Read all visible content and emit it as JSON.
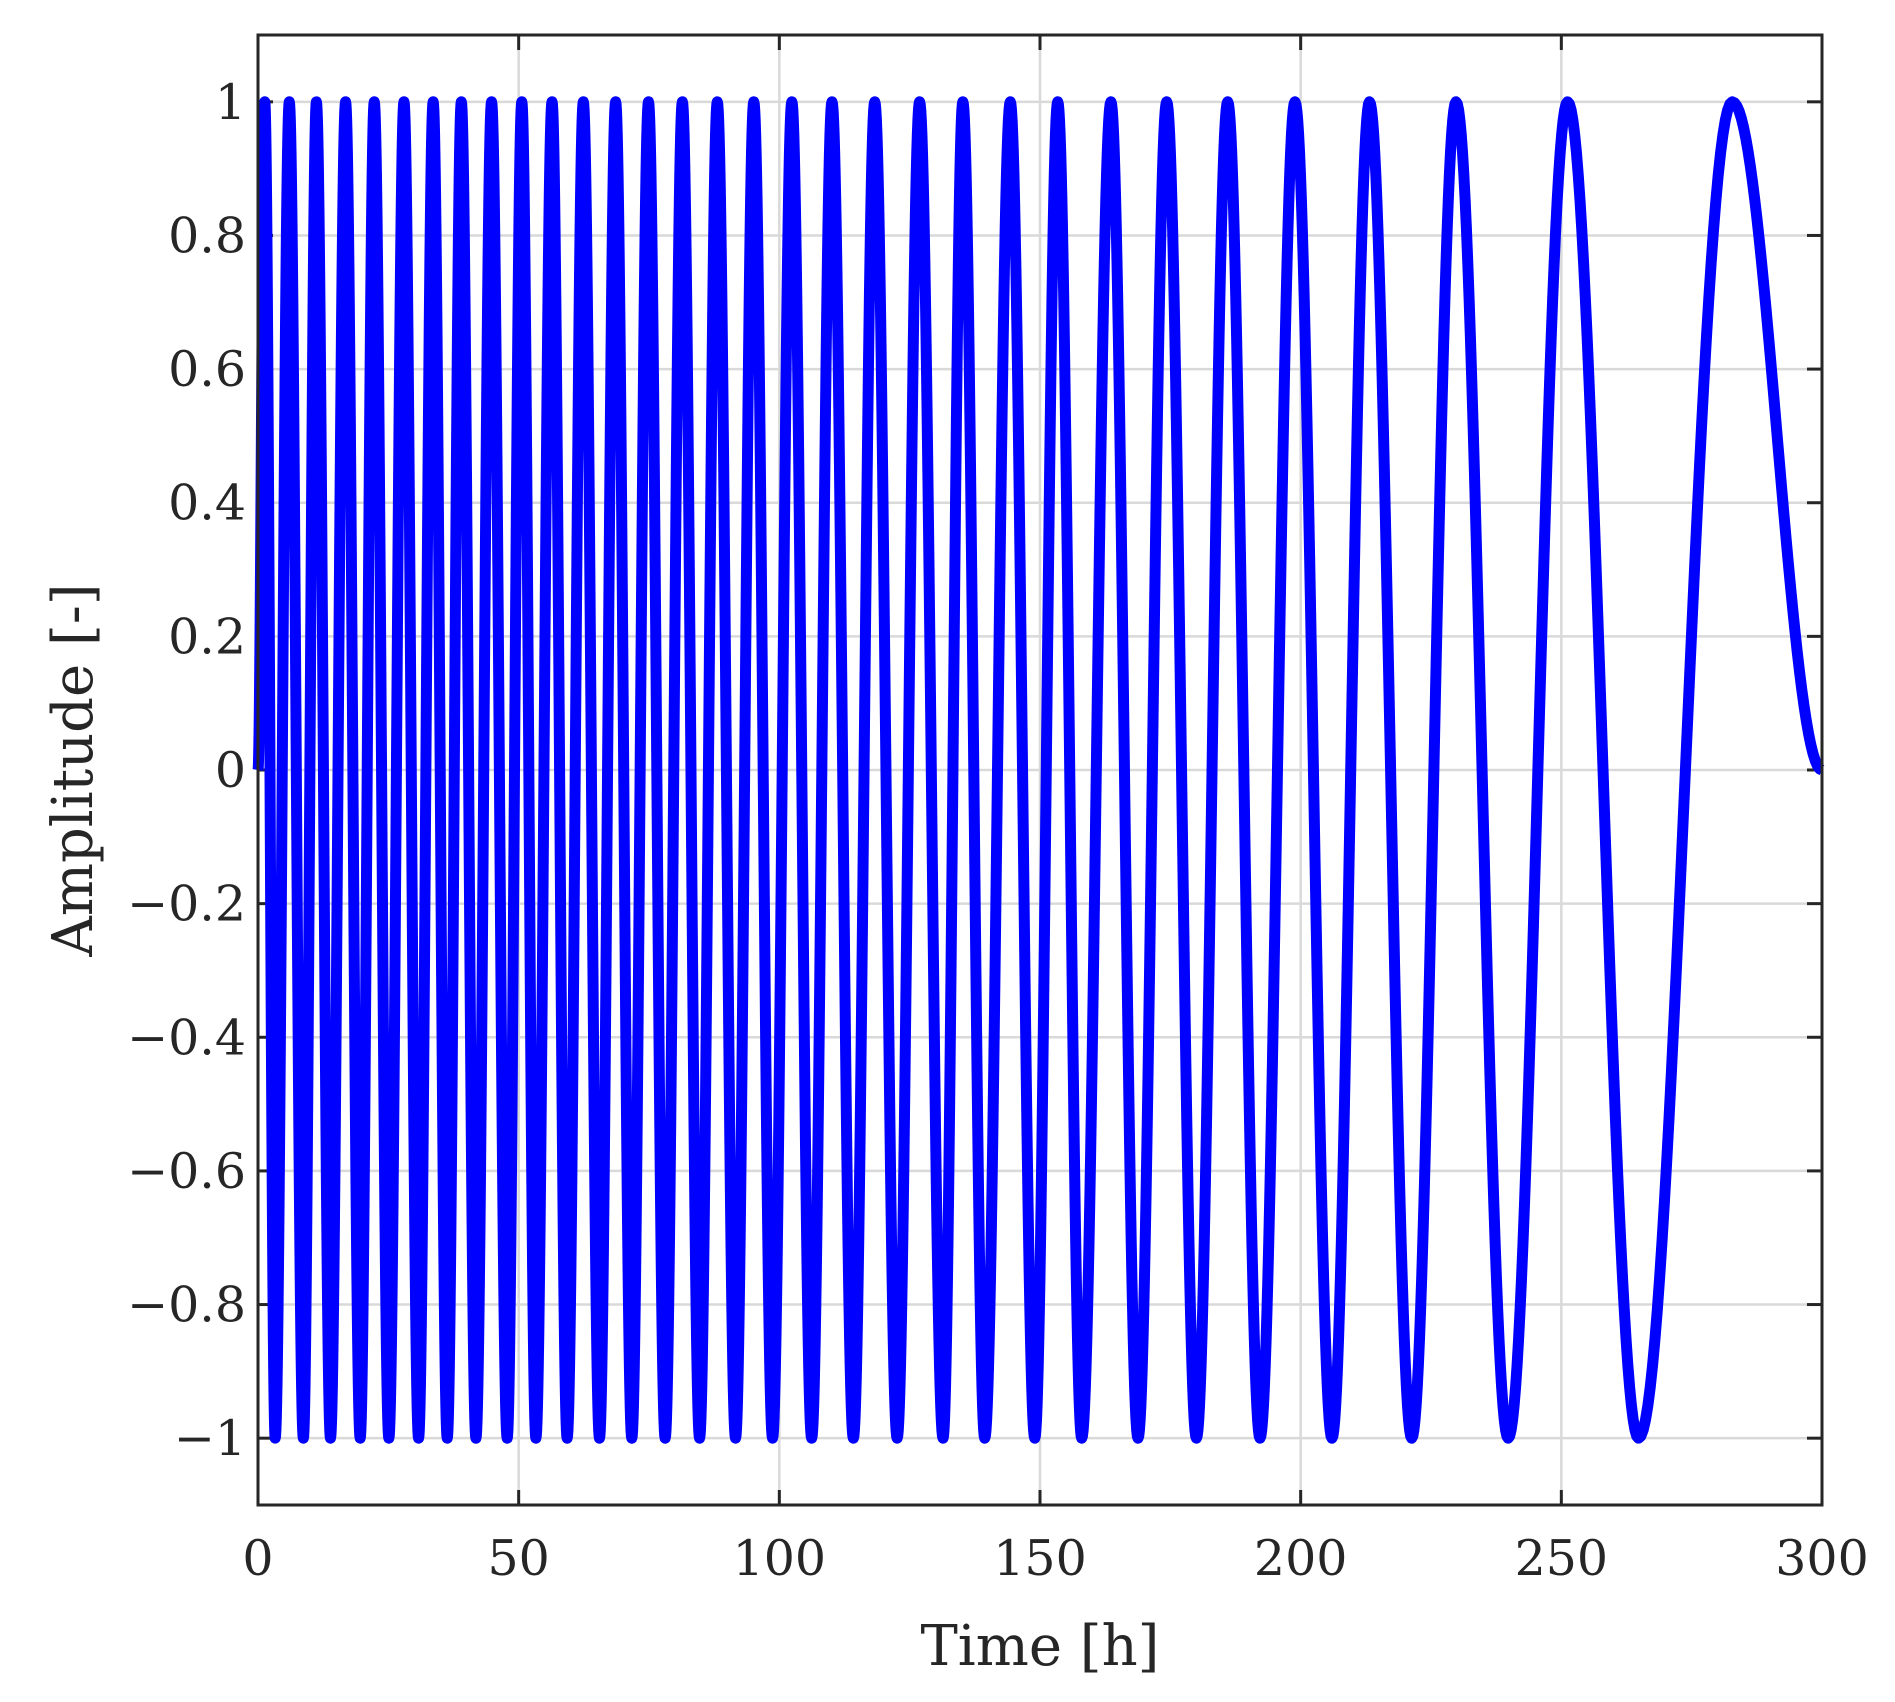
{
  "chart_data": {
    "type": "line",
    "title": "",
    "xlabel": "Time [h]",
    "ylabel": "Amplitude [-]",
    "xlim": [
      0,
      300
    ],
    "ylim": [
      -1.1,
      1.1
    ],
    "grid": true,
    "legend": "none",
    "line_color": "#0000ff",
    "x_ticks": [
      0,
      50,
      100,
      150,
      200,
      250,
      300
    ],
    "x_tick_labels": [
      "0",
      "50",
      "100",
      "150",
      "200",
      "250",
      "300"
    ],
    "y_ticks": [
      -1,
      -0.8,
      -0.6,
      -0.4,
      -0.2,
      0,
      0.2,
      0.4,
      0.6,
      0.8,
      1
    ],
    "y_tick_labels": [
      "−1",
      "−0.8",
      "−0.6",
      "−0.4",
      "−0.2",
      "0",
      "0.2",
      "0.4",
      "0.6",
      "0.8",
      "1"
    ],
    "series": [
      {
        "description": "downward chirp sine, amplitude 1, period shrinking from ~68 h at t=300 to ~5 h near t=0; peaks/troughs listed as [time h, amplitude]",
        "extrema": [
          [
            0.0,
            0
          ],
          [
            1.3,
            1
          ],
          [
            3.3,
            -1
          ],
          [
            6.0,
            1
          ],
          [
            8.7,
            -1
          ],
          [
            11.2,
            1
          ],
          [
            13.9,
            -1
          ],
          [
            16.8,
            1
          ],
          [
            19.6,
            -1
          ],
          [
            22.3,
            1
          ],
          [
            25.1,
            -1
          ],
          [
            28.0,
            1
          ],
          [
            30.8,
            -1
          ],
          [
            33.6,
            1
          ],
          [
            36.3,
            -1
          ],
          [
            39.0,
            1
          ],
          [
            41.8,
            -1
          ],
          [
            44.8,
            1
          ],
          [
            47.8,
            -1
          ],
          [
            50.6,
            1
          ],
          [
            53.3,
            -1
          ],
          [
            56.4,
            1
          ],
          [
            59.3,
            -1
          ],
          [
            62.4,
            1
          ],
          [
            65.5,
            -1
          ],
          [
            68.6,
            1
          ],
          [
            71.7,
            -1
          ],
          [
            74.9,
            1
          ],
          [
            78.1,
            -1
          ],
          [
            81.4,
            1
          ],
          [
            84.7,
            -1
          ],
          [
            88.1,
            1
          ],
          [
            91.6,
            -1
          ],
          [
            95.1,
            1
          ],
          [
            98.7,
            -1
          ],
          [
            102.4,
            1
          ],
          [
            106.2,
            -1
          ],
          [
            110.1,
            1
          ],
          [
            114.2,
            -1
          ],
          [
            118.3,
            1
          ],
          [
            122.6,
            -1
          ],
          [
            126.9,
            1
          ],
          [
            131.4,
            -1
          ],
          [
            135.2,
            1
          ],
          [
            139.4,
            -1
          ],
          [
            144.3,
            1
          ],
          [
            149.0,
            -1
          ],
          [
            153.4,
            1
          ],
          [
            158.0,
            -1
          ],
          [
            163.6,
            1
          ],
          [
            168.8,
            -1
          ],
          [
            174.3,
            1
          ],
          [
            180.0,
            -1
          ],
          [
            186.0,
            1
          ],
          [
            192.2,
            -1
          ],
          [
            198.9,
            1
          ],
          [
            206.0,
            -1
          ],
          [
            213.2,
            1
          ],
          [
            221.3,
            -1
          ],
          [
            229.8,
            1
          ],
          [
            239.8,
            -1
          ],
          [
            251.2,
            1
          ],
          [
            264.8,
            -1
          ],
          [
            282.8,
            1
          ],
          [
            300.0,
            0
          ]
        ]
      }
    ]
  }
}
